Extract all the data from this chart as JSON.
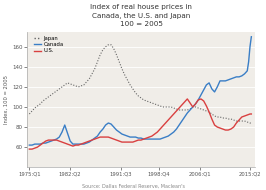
{
  "title_line1": "Index of real house prices in",
  "title_line2": "Canada, the U.S. and Japan",
  "subtitle": "100 = 2005",
  "source": "Source: Dallas Federal Reserve, Maclean's",
  "ylabel": "Index, 100 = 2005",
  "xlabel_ticks": [
    "1975:Q1",
    "1982:Q2",
    "1991:Q3",
    "1998:Q4",
    "2006:Q1",
    "2015:Q2"
  ],
  "xtick_positions": [
    1975.0,
    1982.5,
    1991.75,
    1998.75,
    2006.25,
    2015.5
  ],
  "ylim": [
    40,
    175
  ],
  "xlim": [
    1974.5,
    2016.5
  ],
  "yticks": [
    60,
    80,
    100,
    120,
    140,
    160
  ],
  "canada_color": "#3a7ec6",
  "us_color": "#d94040",
  "japan_color": "#666666",
  "fig_bg": "#ffffff",
  "plot_bg": "#f0ede8",
  "canada": [
    [
      1975.0,
      62
    ],
    [
      1975.5,
      62
    ],
    [
      1976.0,
      63
    ],
    [
      1976.5,
      63
    ],
    [
      1977.0,
      63
    ],
    [
      1977.5,
      64
    ],
    [
      1978.0,
      64
    ],
    [
      1978.5,
      65
    ],
    [
      1979.0,
      66
    ],
    [
      1979.5,
      67
    ],
    [
      1980.0,
      68
    ],
    [
      1980.5,
      70
    ],
    [
      1981.0,
      75
    ],
    [
      1981.5,
      82
    ],
    [
      1982.0,
      74
    ],
    [
      1982.5,
      66
    ],
    [
      1983.0,
      63
    ],
    [
      1983.5,
      63
    ],
    [
      1984.0,
      63
    ],
    [
      1984.5,
      63
    ],
    [
      1985.0,
      63
    ],
    [
      1985.5,
      64
    ],
    [
      1986.0,
      65
    ],
    [
      1986.5,
      67
    ],
    [
      1987.0,
      69
    ],
    [
      1987.5,
      71
    ],
    [
      1988.0,
      75
    ],
    [
      1988.5,
      78
    ],
    [
      1989.0,
      82
    ],
    [
      1989.5,
      84
    ],
    [
      1990.0,
      83
    ],
    [
      1990.5,
      80
    ],
    [
      1991.0,
      77
    ],
    [
      1991.5,
      75
    ],
    [
      1992.0,
      73
    ],
    [
      1992.5,
      72
    ],
    [
      1993.0,
      71
    ],
    [
      1993.5,
      70
    ],
    [
      1994.0,
      70
    ],
    [
      1994.5,
      70
    ],
    [
      1995.0,
      69
    ],
    [
      1995.5,
      69
    ],
    [
      1996.0,
      68
    ],
    [
      1996.5,
      68
    ],
    [
      1997.0,
      68
    ],
    [
      1997.5,
      68
    ],
    [
      1998.0,
      68
    ],
    [
      1998.5,
      68
    ],
    [
      1999.0,
      68
    ],
    [
      1999.5,
      69
    ],
    [
      2000.0,
      70
    ],
    [
      2000.5,
      71
    ],
    [
      2001.0,
      73
    ],
    [
      2001.5,
      75
    ],
    [
      2002.0,
      78
    ],
    [
      2002.5,
      82
    ],
    [
      2003.0,
      86
    ],
    [
      2003.5,
      90
    ],
    [
      2004.0,
      94
    ],
    [
      2004.5,
      97
    ],
    [
      2005.0,
      100
    ],
    [
      2005.5,
      103
    ],
    [
      2006.0,
      107
    ],
    [
      2006.5,
      112
    ],
    [
      2007.0,
      117
    ],
    [
      2007.5,
      122
    ],
    [
      2008.0,
      124
    ],
    [
      2008.5,
      118
    ],
    [
      2009.0,
      115
    ],
    [
      2009.5,
      120
    ],
    [
      2010.0,
      126
    ],
    [
      2010.5,
      126
    ],
    [
      2011.0,
      126
    ],
    [
      2011.5,
      127
    ],
    [
      2012.0,
      128
    ],
    [
      2012.5,
      129
    ],
    [
      2013.0,
      130
    ],
    [
      2013.5,
      130
    ],
    [
      2014.0,
      131
    ],
    [
      2014.5,
      133
    ],
    [
      2015.0,
      136
    ],
    [
      2015.25,
      145
    ],
    [
      2015.5,
      160
    ],
    [
      2015.75,
      170
    ]
  ],
  "us": [
    [
      1975.0,
      58
    ],
    [
      1975.5,
      58
    ],
    [
      1976.0,
      59
    ],
    [
      1976.5,
      60
    ],
    [
      1977.0,
      62
    ],
    [
      1977.5,
      64
    ],
    [
      1978.0,
      66
    ],
    [
      1978.5,
      67
    ],
    [
      1979.0,
      67
    ],
    [
      1979.5,
      67
    ],
    [
      1980.0,
      67
    ],
    [
      1980.5,
      66
    ],
    [
      1981.0,
      65
    ],
    [
      1981.5,
      64
    ],
    [
      1982.0,
      63
    ],
    [
      1982.5,
      62
    ],
    [
      1983.0,
      61
    ],
    [
      1983.5,
      62
    ],
    [
      1984.0,
      62
    ],
    [
      1984.5,
      63
    ],
    [
      1985.0,
      64
    ],
    [
      1985.5,
      65
    ],
    [
      1986.0,
      66
    ],
    [
      1986.5,
      67
    ],
    [
      1987.0,
      68
    ],
    [
      1987.5,
      69
    ],
    [
      1988.0,
      70
    ],
    [
      1988.5,
      70
    ],
    [
      1989.0,
      70
    ],
    [
      1989.5,
      70
    ],
    [
      1990.0,
      69
    ],
    [
      1990.5,
      68
    ],
    [
      1991.0,
      67
    ],
    [
      1991.5,
      66
    ],
    [
      1992.0,
      65
    ],
    [
      1992.5,
      65
    ],
    [
      1993.0,
      65
    ],
    [
      1993.5,
      65
    ],
    [
      1994.0,
      65
    ],
    [
      1994.5,
      66
    ],
    [
      1995.0,
      67
    ],
    [
      1995.5,
      67
    ],
    [
      1996.0,
      68
    ],
    [
      1996.5,
      69
    ],
    [
      1997.0,
      70
    ],
    [
      1997.5,
      71
    ],
    [
      1998.0,
      73
    ],
    [
      1998.5,
      75
    ],
    [
      1999.0,
      78
    ],
    [
      1999.5,
      81
    ],
    [
      2000.0,
      84
    ],
    [
      2000.5,
      87
    ],
    [
      2001.0,
      90
    ],
    [
      2001.5,
      93
    ],
    [
      2002.0,
      96
    ],
    [
      2002.5,
      99
    ],
    [
      2003.0,
      102
    ],
    [
      2003.5,
      105
    ],
    [
      2004.0,
      108
    ],
    [
      2004.5,
      104
    ],
    [
      2005.0,
      100
    ],
    [
      2005.5,
      103
    ],
    [
      2006.0,
      107
    ],
    [
      2006.5,
      108
    ],
    [
      2007.0,
      106
    ],
    [
      2007.5,
      101
    ],
    [
      2008.0,
      95
    ],
    [
      2008.5,
      88
    ],
    [
      2009.0,
      82
    ],
    [
      2009.5,
      80
    ],
    [
      2010.0,
      79
    ],
    [
      2010.5,
      78
    ],
    [
      2011.0,
      77
    ],
    [
      2011.5,
      77
    ],
    [
      2012.0,
      78
    ],
    [
      2012.5,
      80
    ],
    [
      2013.0,
      84
    ],
    [
      2013.5,
      87
    ],
    [
      2014.0,
      90
    ],
    [
      2014.5,
      91
    ],
    [
      2015.0,
      92
    ],
    [
      2015.5,
      93
    ],
    [
      2015.75,
      93
    ]
  ],
  "japan": [
    [
      1975.0,
      93
    ],
    [
      1975.5,
      96
    ],
    [
      1976.0,
      99
    ],
    [
      1976.5,
      101
    ],
    [
      1977.0,
      103
    ],
    [
      1977.5,
      106
    ],
    [
      1978.0,
      108
    ],
    [
      1978.5,
      110
    ],
    [
      1979.0,
      112
    ],
    [
      1979.5,
      114
    ],
    [
      1980.0,
      116
    ],
    [
      1980.5,
      118
    ],
    [
      1981.0,
      120
    ],
    [
      1981.5,
      122
    ],
    [
      1982.0,
      124
    ],
    [
      1982.5,
      123
    ],
    [
      1983.0,
      122
    ],
    [
      1983.5,
      121
    ],
    [
      1984.0,
      120
    ],
    [
      1984.5,
      121
    ],
    [
      1985.0,
      122
    ],
    [
      1985.5,
      125
    ],
    [
      1986.0,
      128
    ],
    [
      1986.5,
      133
    ],
    [
      1987.0,
      138
    ],
    [
      1987.5,
      145
    ],
    [
      1988.0,
      152
    ],
    [
      1988.5,
      157
    ],
    [
      1989.0,
      160
    ],
    [
      1989.5,
      162
    ],
    [
      1990.0,
      162
    ],
    [
      1990.5,
      158
    ],
    [
      1991.0,
      152
    ],
    [
      1991.5,
      145
    ],
    [
      1992.0,
      138
    ],
    [
      1992.5,
      132
    ],
    [
      1993.0,
      127
    ],
    [
      1993.5,
      122
    ],
    [
      1994.0,
      118
    ],
    [
      1994.5,
      114
    ],
    [
      1995.0,
      111
    ],
    [
      1995.5,
      109
    ],
    [
      1996.0,
      107
    ],
    [
      1996.5,
      106
    ],
    [
      1997.0,
      105
    ],
    [
      1997.5,
      104
    ],
    [
      1998.0,
      103
    ],
    [
      1998.5,
      102
    ],
    [
      1999.0,
      101
    ],
    [
      1999.5,
      100
    ],
    [
      2000.0,
      100
    ],
    [
      2000.5,
      100
    ],
    [
      2001.0,
      100
    ],
    [
      2001.5,
      99
    ],
    [
      2002.0,
      98
    ],
    [
      2002.5,
      97
    ],
    [
      2003.0,
      97
    ],
    [
      2003.5,
      97
    ],
    [
      2004.0,
      97
    ],
    [
      2004.5,
      98
    ],
    [
      2005.0,
      100
    ],
    [
      2005.5,
      100
    ],
    [
      2006.0,
      99
    ],
    [
      2006.5,
      98
    ],
    [
      2007.0,
      97
    ],
    [
      2007.5,
      96
    ],
    [
      2008.0,
      95
    ],
    [
      2008.5,
      93
    ],
    [
      2009.0,
      91
    ],
    [
      2009.5,
      90
    ],
    [
      2010.0,
      90
    ],
    [
      2010.5,
      89
    ],
    [
      2011.0,
      89
    ],
    [
      2011.5,
      88
    ],
    [
      2012.0,
      88
    ],
    [
      2012.5,
      87
    ],
    [
      2013.0,
      86
    ],
    [
      2013.5,
      86
    ],
    [
      2014.0,
      86
    ],
    [
      2014.5,
      86
    ],
    [
      2015.0,
      85
    ],
    [
      2015.5,
      84
    ],
    [
      2015.75,
      84
    ]
  ]
}
